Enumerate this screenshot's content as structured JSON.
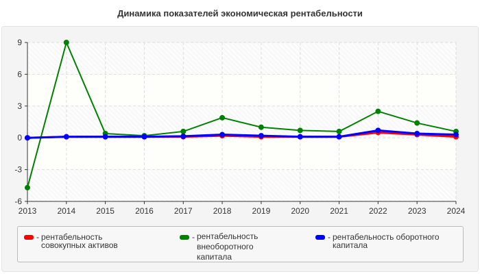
{
  "chart_data": {
    "type": "line",
    "title": "Динамика показателей экономическая рентабельности",
    "categories": [
      "2013",
      "2014",
      "2015",
      "2016",
      "2017",
      "2018",
      "2019",
      "2020",
      "2021",
      "2022",
      "2023",
      "2024"
    ],
    "ylim": [
      -6,
      9
    ],
    "yticks": [
      "9",
      "6",
      "3",
      "0",
      "-3",
      "-6"
    ],
    "ytick_values": [
      9,
      6,
      3,
      0,
      -3,
      -6
    ],
    "grid": true,
    "legend_position": "bottom",
    "series": [
      {
        "name": "рентабельность совокупных активов",
        "color": "#ff0000",
        "values": [
          0.0,
          0.1,
          0.1,
          0.1,
          0.1,
          0.2,
          0.1,
          0.1,
          0.1,
          0.5,
          0.3,
          0.1
        ]
      },
      {
        "name": "рентабельность внеоборотного капитала",
        "color": "#008000",
        "values": [
          -4.7,
          9.0,
          0.4,
          0.2,
          0.6,
          1.9,
          1.0,
          0.7,
          0.6,
          2.5,
          1.4,
          0.6
        ]
      },
      {
        "name": "рентабельность оборотного капитала",
        "color": "#0000ff",
        "values": [
          0.0,
          0.1,
          0.1,
          0.1,
          0.15,
          0.3,
          0.2,
          0.1,
          0.1,
          0.7,
          0.4,
          0.3
        ]
      }
    ],
    "legend_separator": "-"
  }
}
